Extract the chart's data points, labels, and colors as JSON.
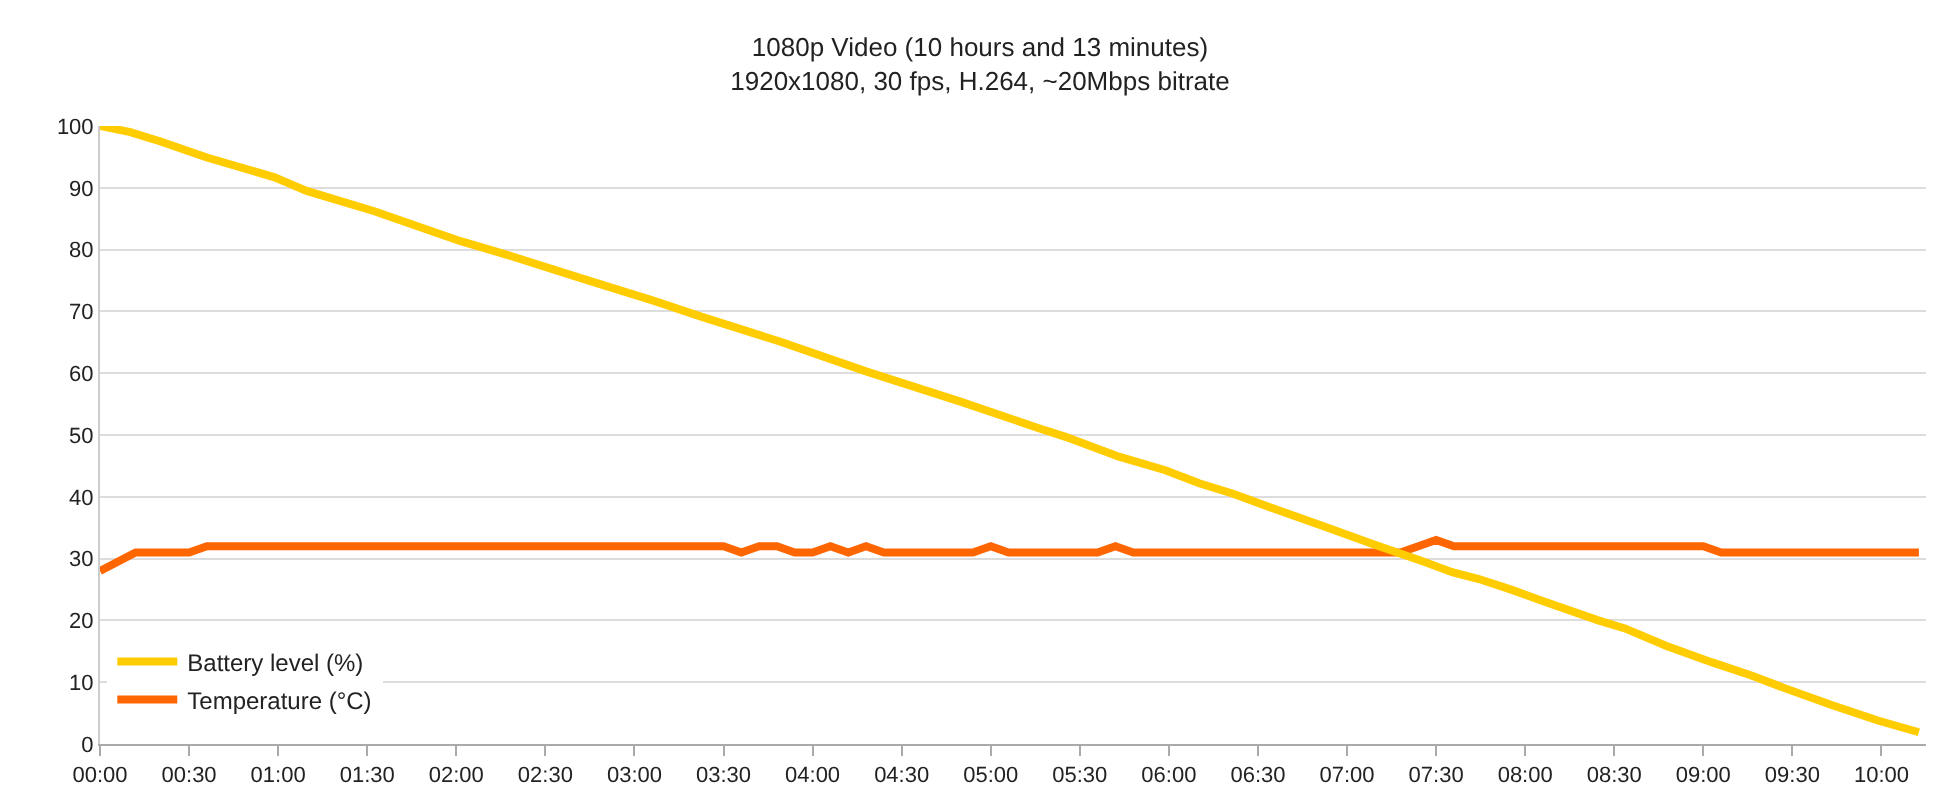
{
  "chart_data": {
    "type": "line",
    "title": "1080p Video (10 hours and 13 minutes)",
    "subtitle": "1920x1080, 30 fps, H.264, ~20Mbps bitrate",
    "xlim": [
      0,
      10.25
    ],
    "xticks": [
      {
        "value": 0,
        "label": "00:00"
      },
      {
        "value": 0.5,
        "label": "00:30"
      },
      {
        "value": 1,
        "label": "01:00"
      },
      {
        "value": 1.5,
        "label": "01:30"
      },
      {
        "value": 2,
        "label": "02:00"
      },
      {
        "value": 2.5,
        "label": "02:30"
      },
      {
        "value": 3,
        "label": "03:00"
      },
      {
        "value": 3.5,
        "label": "03:30"
      },
      {
        "value": 4,
        "label": "04:00"
      },
      {
        "value": 4.5,
        "label": "04:30"
      },
      {
        "value": 5,
        "label": "05:00"
      },
      {
        "value": 5.5,
        "label": "05:30"
      },
      {
        "value": 6,
        "label": "06:00"
      },
      {
        "value": 6.5,
        "label": "06:30"
      },
      {
        "value": 7,
        "label": "07:00"
      },
      {
        "value": 7.5,
        "label": "07:30"
      },
      {
        "value": 8,
        "label": "08:00"
      },
      {
        "value": 8.5,
        "label": "08:30"
      },
      {
        "value": 9,
        "label": "09:00"
      },
      {
        "value": 9.5,
        "label": "09:30"
      },
      {
        "value": 10,
        "label": "10:00"
      }
    ],
    "ylim": [
      0,
      100
    ],
    "yticks": [
      0,
      10,
      20,
      30,
      40,
      50,
      60,
      70,
      80,
      90,
      100
    ],
    "grid": "y",
    "legend": "bottom left",
    "series": [
      {
        "name": "Battery level (%)",
        "color": "#ffcc00",
        "x": [
          0,
          0.17,
          0.34,
          0.6,
          0.98,
          1.16,
          1.54,
          2.02,
          2.29,
          2.73,
          3.11,
          3.37,
          3.82,
          4.3,
          4.83,
          5.27,
          5.42,
          5.72,
          5.98,
          6.17,
          6.36,
          6.51,
          6.88,
          7.14,
          7.44,
          7.59,
          7.74,
          7.93,
          8.11,
          8.41,
          8.56,
          8.79,
          9.05,
          9.27,
          9.46,
          9.72,
          9.98,
          10.21
        ],
        "values": [
          100,
          99,
          97.5,
          94.9,
          91.7,
          89.5,
          86.2,
          81.4,
          79.1,
          75.1,
          71.7,
          69.2,
          65.1,
          60.3,
          55.4,
          51.1,
          49.7,
          46.5,
          44.3,
          42.2,
          40.5,
          38.9,
          35.1,
          32.4,
          29.4,
          27.8,
          26.7,
          24.9,
          23,
          20,
          18.7,
          15.9,
          13.2,
          11.1,
          9,
          6.3,
          3.8,
          1.9
        ]
      },
      {
        "name": "Temperature (°C)",
        "color": "#ff6600",
        "x": [
          0,
          0.2,
          0.5,
          0.6,
          3.5,
          3.6,
          3.7,
          3.8,
          3.9,
          4.0,
          4.1,
          4.2,
          4.3,
          4.4,
          4.9,
          5.0,
          5.1,
          5.6,
          5.7,
          5.8,
          7.3,
          7.4,
          7.5,
          7.6,
          9.0,
          9.1,
          10.21
        ],
        "values": [
          28,
          31,
          31,
          32,
          32,
          31,
          32,
          32,
          31,
          31,
          32,
          31,
          32,
          31,
          31,
          32,
          31,
          31,
          32,
          31,
          31,
          32,
          33,
          32,
          32,
          31,
          31
        ]
      }
    ]
  }
}
